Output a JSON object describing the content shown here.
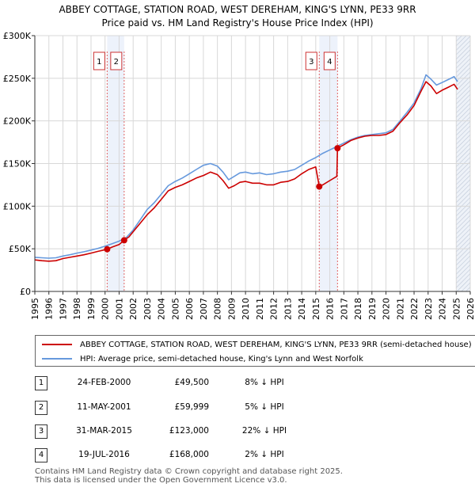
{
  "chart_data": {
    "type": "line",
    "title": "ABBEY COTTAGE, STATION ROAD, WEST DEREHAM, KING'S LYNN, PE33 9RR",
    "subtitle": "Price paid vs. HM Land Registry's House Price Index (HPI)",
    "xlabel": "",
    "ylabel": "",
    "xlim": [
      1995,
      2026
    ],
    "ylim": [
      0,
      300000
    ],
    "x_ticks": [
      "1995",
      "1996",
      "1997",
      "1998",
      "1999",
      "2000",
      "2001",
      "2002",
      "2003",
      "2004",
      "2005",
      "2006",
      "2007",
      "2008",
      "2009",
      "2010",
      "2011",
      "2012",
      "2013",
      "2014",
      "2015",
      "2016",
      "2017",
      "2018",
      "2019",
      "2020",
      "2021",
      "2022",
      "2023",
      "2024",
      "2025",
      "2026"
    ],
    "y_ticks": [
      {
        "value": 0,
        "label": "£0"
      },
      {
        "value": 50000,
        "label": "£50K"
      },
      {
        "value": 100000,
        "label": "£100K"
      },
      {
        "value": 150000,
        "label": "£150K"
      },
      {
        "value": 200000,
        "label": "£200K"
      },
      {
        "value": 250000,
        "label": "£250K"
      },
      {
        "value": 300000,
        "label": "£300K"
      }
    ],
    "grid": true,
    "series": [
      {
        "name": "ABBEY COTTAGE, STATION ROAD, WEST DEREHAM, KING'S LYNN, PE33 9RR (semi-detached house)",
        "color": "#cc0000",
        "x": [
          1995.0,
          1995.5,
          1996.0,
          1996.5,
          1997.0,
          1997.5,
          1998.0,
          1998.5,
          1999.0,
          1999.5,
          2000.15,
          2000.5,
          2001.0,
          2001.36,
          2001.7,
          2002.0,
          2002.5,
          2003.0,
          2003.5,
          2004.0,
          2004.5,
          2005.0,
          2005.5,
          2006.0,
          2006.5,
          2007.0,
          2007.5,
          2008.0,
          2008.4,
          2008.8,
          2009.2,
          2009.6,
          2010.0,
          2010.5,
          2011.0,
          2011.5,
          2012.0,
          2012.5,
          2013.0,
          2013.5,
          2014.0,
          2014.5,
          2015.0,
          2015.25,
          2015.5,
          2016.0,
          2016.5,
          2016.55,
          2017.0,
          2017.5,
          2018.0,
          2018.5,
          2019.0,
          2019.5,
          2020.0,
          2020.5,
          2021.0,
          2021.5,
          2022.0,
          2022.5,
          2022.85,
          2023.2,
          2023.6,
          2024.0,
          2024.5,
          2024.85,
          2025.1
        ],
        "values": [
          37000,
          36000,
          35500,
          36000,
          38500,
          40000,
          41500,
          43000,
          45000,
          47000,
          49500,
          52000,
          55000,
          59999,
          64000,
          70000,
          80000,
          90000,
          98000,
          108000,
          118000,
          122000,
          125000,
          129000,
          133000,
          136000,
          140000,
          137000,
          130000,
          121000,
          124000,
          128000,
          129000,
          127000,
          127000,
          125000,
          125000,
          128000,
          129000,
          132000,
          138000,
          143000,
          146000,
          123000,
          125000,
          130000,
          135000,
          168000,
          172000,
          177000,
          180000,
          182000,
          183000,
          183000,
          184000,
          188000,
          198000,
          207000,
          218000,
          235000,
          246000,
          241000,
          232000,
          236000,
          240000,
          243000,
          237000
        ]
      },
      {
        "name": "HPI: Average price, semi-detached house, King's Lynn and West Norfolk",
        "color": "#6699dd",
        "x": [
          1995.0,
          1995.5,
          1996.0,
          1996.5,
          1997.0,
          1997.5,
          1998.0,
          1998.5,
          1999.0,
          1999.5,
          2000.0,
          2000.5,
          2001.0,
          2001.5,
          2002.0,
          2002.5,
          2003.0,
          2003.5,
          2004.0,
          2004.5,
          2005.0,
          2005.5,
          2006.0,
          2006.5,
          2007.0,
          2007.5,
          2008.0,
          2008.4,
          2008.8,
          2009.2,
          2009.6,
          2010.0,
          2010.5,
          2011.0,
          2011.5,
          2012.0,
          2012.5,
          2013.0,
          2013.5,
          2014.0,
          2014.5,
          2015.0,
          2015.5,
          2016.0,
          2016.5,
          2017.0,
          2017.5,
          2018.0,
          2018.5,
          2019.0,
          2019.5,
          2020.0,
          2020.5,
          2021.0,
          2021.5,
          2022.0,
          2022.5,
          2022.85,
          2023.2,
          2023.6,
          2024.0,
          2024.5,
          2024.85,
          2025.1
        ],
        "values": [
          40000,
          39500,
          39000,
          39500,
          41500,
          43000,
          45000,
          46500,
          48500,
          50500,
          53000,
          56000,
          59000,
          63000,
          72000,
          84000,
          96000,
          104000,
          114000,
          124000,
          129000,
          133000,
          138000,
          143000,
          148000,
          150000,
          147000,
          140000,
          131000,
          135000,
          139000,
          140000,
          138000,
          139000,
          137000,
          138000,
          140000,
          141000,
          143000,
          148000,
          153000,
          157000,
          162000,
          166000,
          170000,
          174000,
          178000,
          181000,
          183000,
          184000,
          185000,
          186000,
          190000,
          200000,
          210000,
          221000,
          238000,
          254000,
          249000,
          242000,
          245000,
          249000,
          252000,
          246000
        ]
      }
    ],
    "markers": [
      {
        "label": "1",
        "x": 2000.15,
        "value": 49500
      },
      {
        "label": "2",
        "x": 2001.36,
        "value": 59999
      },
      {
        "label": "3",
        "x": 2015.25,
        "value": 123000
      },
      {
        "label": "4",
        "x": 2016.55,
        "value": 168000
      }
    ],
    "shaded_periods": [
      [
        2000.15,
        2001.36
      ],
      [
        2015.25,
        2016.55
      ],
      [
        2025.0,
        2026.0
      ]
    ]
  },
  "legend": {
    "items": [
      {
        "label": "ABBEY COTTAGE, STATION ROAD, WEST DEREHAM, KING'S LYNN, PE33 9RR (semi-detached house)",
        "color": "#cc0000"
      },
      {
        "label": "HPI: Average price, semi-detached house, King's Lynn and West Norfolk",
        "color": "#6699dd"
      }
    ]
  },
  "transactions": [
    {
      "num": "1",
      "date": "24-FEB-2000",
      "price": "£49,500",
      "hpi": "8% ↓ HPI"
    },
    {
      "num": "2",
      "date": "11-MAY-2001",
      "price": "£59,999",
      "hpi": "5% ↓ HPI"
    },
    {
      "num": "3",
      "date": "31-MAR-2015",
      "price": "£123,000",
      "hpi": "22% ↓ HPI"
    },
    {
      "num": "4",
      "date": "19-JUL-2016",
      "price": "£168,000",
      "hpi": "2% ↓ HPI"
    }
  ],
  "footer": {
    "line1": "Contains HM Land Registry data © Crown copyright and database right 2025.",
    "line2": "This data is licensed under the Open Government Licence v3.0."
  }
}
